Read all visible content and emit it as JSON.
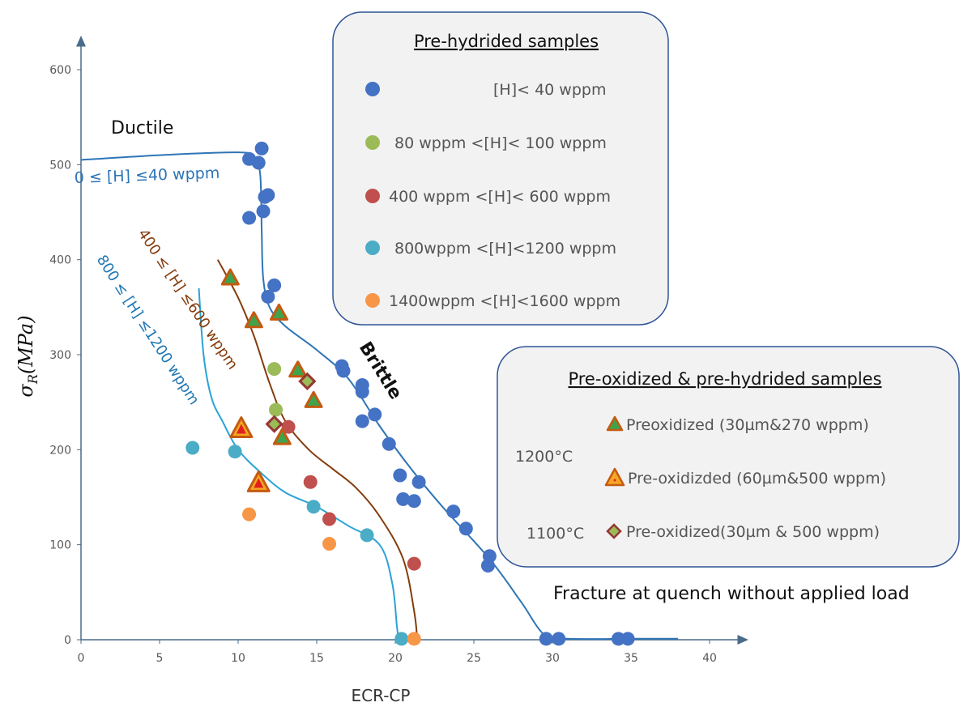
{
  "chart_data": {
    "type": "scatter",
    "xlabel": "ECR-CP",
    "ylabel_parts": [
      "σ",
      "R",
      "(MPa)"
    ],
    "xlim": [
      0,
      42
    ],
    "ylim": [
      0,
      640
    ],
    "xticks": [
      0,
      5,
      10,
      15,
      20,
      25,
      30,
      35,
      40
    ],
    "yticks": [
      0,
      100,
      200,
      300,
      400,
      500,
      600
    ],
    "grid": false,
    "series": [
      {
        "name": "[H]< 40 wppm",
        "marker": "circle",
        "color": "#4472c4",
        "points": [
          [
            10.7,
            506
          ],
          [
            11.3,
            502
          ],
          [
            11.5,
            517
          ],
          [
            10.7,
            444
          ],
          [
            11.6,
            451
          ],
          [
            11.7,
            466
          ],
          [
            11.9,
            468
          ],
          [
            11.9,
            361
          ],
          [
            12.3,
            373
          ],
          [
            16.6,
            288
          ],
          [
            16.7,
            283
          ],
          [
            17.9,
            268
          ],
          [
            17.9,
            261
          ],
          [
            17.9,
            230
          ],
          [
            18.7,
            237
          ],
          [
            19.6,
            206
          ],
          [
            20.3,
            173
          ],
          [
            20.5,
            148
          ],
          [
            21.2,
            146
          ],
          [
            21.5,
            166
          ],
          [
            23.7,
            135
          ],
          [
            24.5,
            117
          ],
          [
            26.0,
            88
          ],
          [
            25.9,
            78
          ],
          [
            29.6,
            1
          ],
          [
            30.4,
            1
          ],
          [
            34.2,
            1
          ],
          [
            34.8,
            1
          ]
        ]
      },
      {
        "name": "80 wppm <[H]< 100 wppm",
        "marker": "circle",
        "color": "#9bbb59",
        "points": [
          [
            12.3,
            285
          ],
          [
            12.4,
            242
          ]
        ]
      },
      {
        "name": "400 wppm <[H]< 600 wppm",
        "marker": "circle",
        "color": "#c0504d",
        "points": [
          [
            13.2,
            224
          ],
          [
            14.6,
            166
          ],
          [
            15.8,
            127
          ],
          [
            21.2,
            80
          ]
        ]
      },
      {
        "name": "800wppm <[H]<1200 wppm",
        "marker": "circle",
        "color": "#4bacc6",
        "points": [
          [
            7.1,
            202
          ],
          [
            9.8,
            198
          ],
          [
            14.8,
            140
          ],
          [
            18.2,
            110
          ],
          [
            20.4,
            1
          ]
        ]
      },
      {
        "name": "1400wppm <[H]<1600 wppm",
        "marker": "circle",
        "color": "#f79646",
        "points": [
          [
            10.7,
            132
          ],
          [
            15.8,
            101
          ],
          [
            21.2,
            1
          ]
        ]
      },
      {
        "name": "Preoxidized (30µm&270 wppm)",
        "marker": "triangle-green",
        "points": [
          [
            9.5,
            381
          ],
          [
            11.0,
            336
          ],
          [
            12.6,
            344
          ],
          [
            13.8,
            284
          ],
          [
            14.8,
            252
          ],
          [
            12.8,
            213
          ]
        ]
      },
      {
        "name": "Pre-oxidizded (60µm&500 wppm)",
        "marker": "triangle-red",
        "points": [
          [
            10.2,
            222
          ],
          [
            11.3,
            165
          ]
        ]
      },
      {
        "name": "Pre-oxidized(30µm & 500 wppm)",
        "marker": "diamond",
        "points": [
          [
            14.4,
            272
          ],
          [
            12.3,
            227
          ]
        ]
      }
    ],
    "curves": [
      {
        "label": "0 ≤ [H] ≤40 wppm",
        "color": "#2e75b6",
        "points": [
          [
            0,
            505
          ],
          [
            5,
            510
          ],
          [
            10,
            513
          ],
          [
            11,
            508
          ],
          [
            11.4,
            490
          ],
          [
            11.5,
            430
          ],
          [
            11.6,
            380
          ],
          [
            12,
            350
          ],
          [
            13,
            330
          ],
          [
            15,
            305
          ],
          [
            17,
            275
          ],
          [
            19,
            225
          ],
          [
            21,
            180
          ],
          [
            23,
            140
          ],
          [
            26,
            85
          ],
          [
            28,
            40
          ],
          [
            29.5,
            5
          ],
          [
            31,
            1
          ],
          [
            35,
            1
          ],
          [
            38,
            1
          ]
        ]
      },
      {
        "label": "400 ≤ [H] ≤600 wppm",
        "color": "#843c0c",
        "points": [
          [
            8.7,
            400
          ],
          [
            10,
            360
          ],
          [
            11,
            320
          ],
          [
            12,
            270
          ],
          [
            13,
            230
          ],
          [
            14.5,
            200
          ],
          [
            16,
            180
          ],
          [
            17.5,
            160
          ],
          [
            19,
            130
          ],
          [
            20.5,
            85
          ],
          [
            21.2,
            30
          ],
          [
            21.4,
            0
          ]
        ]
      },
      {
        "label": "800 ≤ [H] ≤1200 wppm",
        "color": "#29a3d6",
        "points": [
          [
            7.5,
            370
          ],
          [
            7.8,
            300
          ],
          [
            8.3,
            255
          ],
          [
            9,
            230
          ],
          [
            10,
            200
          ],
          [
            11.5,
            175
          ],
          [
            13,
            155
          ],
          [
            15,
            140
          ],
          [
            17,
            120
          ],
          [
            19,
            100
          ],
          [
            19.8,
            60
          ],
          [
            20.1,
            15
          ],
          [
            20.2,
            0
          ]
        ]
      }
    ],
    "annotations": {
      "ductile": "Ductile",
      "brittle": "Brittle",
      "fracture_note": "Fracture at quench without applied load"
    },
    "legend_pre_hydrided": {
      "title": "Pre-hydrided samples",
      "items": [
        {
          "label": "[H]<  40 wppm",
          "color": "#4472c4"
        },
        {
          "label": "80 wppm <[H]< 100 wppm",
          "color": "#9bbb59"
        },
        {
          "label": "400 wppm <[H]< 600 wppm",
          "color": "#c0504d"
        },
        {
          "label": "800wppm <[H]<1200 wppm",
          "color": "#4bacc6"
        },
        {
          "label": "1400wppm <[H]<1600 wppm",
          "color": "#f79646"
        }
      ]
    },
    "legend_pre_oxidized": {
      "title": "Pre-oxidized & pre-hydrided samples",
      "temp_1200": "1200°C",
      "temp_1100": "1100°C",
      "items": [
        {
          "label": "Preoxidized (30µm&270 wppm)",
          "marker": "triangle-green"
        },
        {
          "label": "Pre-oxidizded (60µm&500 wppm)",
          "marker": "triangle-red"
        },
        {
          "label": "Pre-oxidized(30µm & 500 wppm)",
          "marker": "diamond"
        }
      ]
    }
  }
}
